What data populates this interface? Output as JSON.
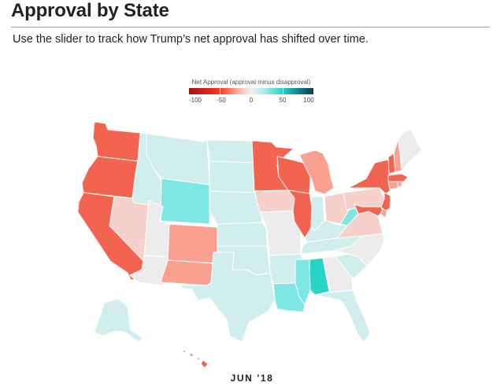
{
  "header": {
    "title": "Approval by State",
    "subtitle": "Use the slider to track how Trump’s net approval has shifted over time."
  },
  "legend": {
    "title": "Net Approval (approval minus disapproval)",
    "ticks": [
      "-100",
      "-50",
      "0",
      "50",
      "100"
    ]
  },
  "slider": {
    "current_label": "JUN '18"
  },
  "colors": {
    "strong_disapprove": "#f26350",
    "moderate_disapprove": "#f9a090",
    "slight_disapprove": "#f6d0ca",
    "neutral": "#ececec",
    "slight_approve": "#d1eeee",
    "moderate_approve": "#7ee7e4",
    "strong_approve": "#29d4c7",
    "state_border": "#ffffff"
  },
  "map_data": {
    "metric": "Net Approval (approval minus disapproval)",
    "period": "JUN '18",
    "states": [
      {
        "state": "WA",
        "shade": "strong_disapprove"
      },
      {
        "state": "OR",
        "shade": "strong_disapprove"
      },
      {
        "state": "CA",
        "shade": "strong_disapprove"
      },
      {
        "state": "NV",
        "shade": "slight_disapprove"
      },
      {
        "state": "ID",
        "shade": "slight_approve"
      },
      {
        "state": "MT",
        "shade": "slight_approve"
      },
      {
        "state": "WY",
        "shade": "moderate_approve"
      },
      {
        "state": "UT",
        "shade": "neutral"
      },
      {
        "state": "AZ",
        "shade": "neutral"
      },
      {
        "state": "CO",
        "shade": "moderate_disapprove"
      },
      {
        "state": "NM",
        "shade": "moderate_disapprove"
      },
      {
        "state": "ND",
        "shade": "slight_approve"
      },
      {
        "state": "SD",
        "shade": "slight_approve"
      },
      {
        "state": "NE",
        "shade": "slight_approve"
      },
      {
        "state": "KS",
        "shade": "slight_approve"
      },
      {
        "state": "OK",
        "shade": "slight_approve"
      },
      {
        "state": "TX",
        "shade": "slight_approve"
      },
      {
        "state": "MN",
        "shade": "strong_disapprove"
      },
      {
        "state": "IA",
        "shade": "slight_disapprove"
      },
      {
        "state": "MO",
        "shade": "neutral"
      },
      {
        "state": "AR",
        "shade": "slight_approve"
      },
      {
        "state": "LA",
        "shade": "moderate_approve"
      },
      {
        "state": "WI",
        "shade": "strong_disapprove"
      },
      {
        "state": "IL",
        "shade": "strong_disapprove"
      },
      {
        "state": "MI",
        "shade": "moderate_disapprove"
      },
      {
        "state": "IN",
        "shade": "slight_approve"
      },
      {
        "state": "OH",
        "shade": "slight_disapprove"
      },
      {
        "state": "KY",
        "shade": "slight_approve"
      },
      {
        "state": "TN",
        "shade": "slight_approve"
      },
      {
        "state": "MS",
        "shade": "moderate_approve"
      },
      {
        "state": "AL",
        "shade": "strong_approve"
      },
      {
        "state": "GA",
        "shade": "neutral"
      },
      {
        "state": "FL",
        "shade": "slight_approve"
      },
      {
        "state": "SC",
        "shade": "slight_approve"
      },
      {
        "state": "NC",
        "shade": "neutral"
      },
      {
        "state": "VA",
        "shade": "slight_disapprove"
      },
      {
        "state": "WV",
        "shade": "moderate_approve"
      },
      {
        "state": "PA",
        "shade": "slight_disapprove"
      },
      {
        "state": "NY",
        "shade": "strong_disapprove"
      },
      {
        "state": "NJ",
        "shade": "strong_disapprove"
      },
      {
        "state": "MD",
        "shade": "strong_disapprove"
      },
      {
        "state": "DE",
        "shade": "moderate_disapprove"
      },
      {
        "state": "CT",
        "shade": "moderate_disapprove"
      },
      {
        "state": "RI",
        "shade": "moderate_disapprove"
      },
      {
        "state": "MA",
        "shade": "strong_disapprove"
      },
      {
        "state": "VT",
        "shade": "strong_disapprove"
      },
      {
        "state": "NH",
        "shade": "moderate_disapprove"
      },
      {
        "state": "ME",
        "shade": "neutral"
      },
      {
        "state": "AK",
        "shade": "slight_approve"
      },
      {
        "state": "HI",
        "shade": "strong_disapprove"
      }
    ]
  }
}
